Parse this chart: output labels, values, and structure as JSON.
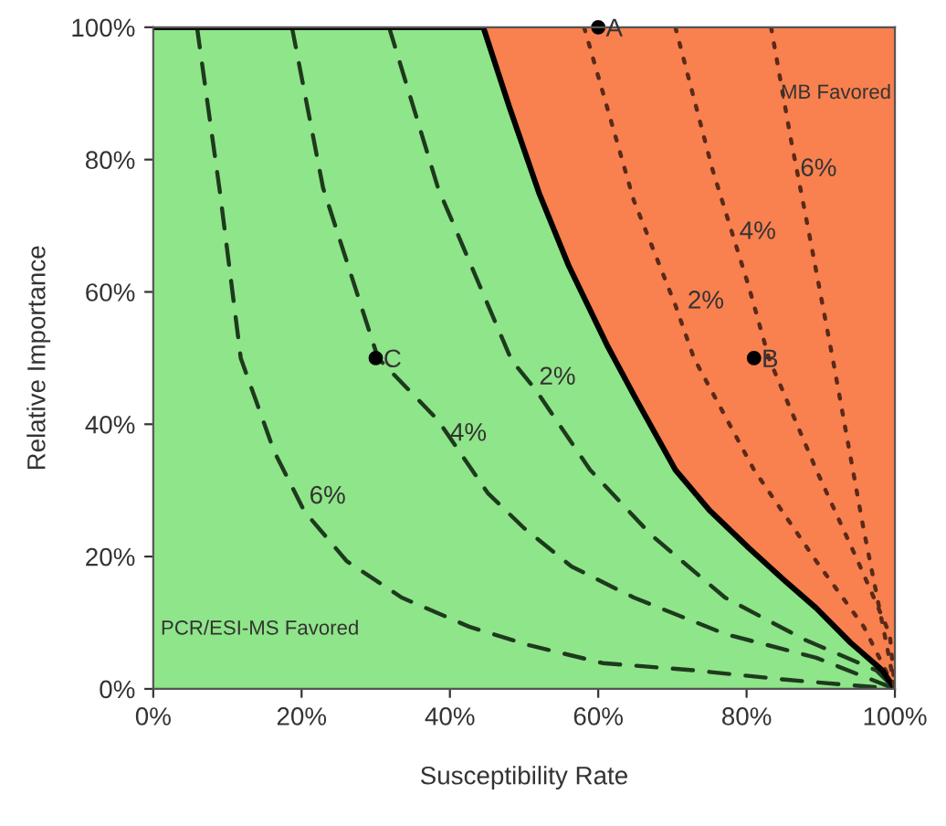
{
  "chart_data": {
    "type": "line",
    "xlabel": "Susceptibility Rate",
    "ylabel": "Relative Importance",
    "xlim": [
      0,
      100
    ],
    "ylim": [
      0,
      100
    ],
    "xticks": [
      {
        "value": 0,
        "label": "0%"
      },
      {
        "value": 20,
        "label": "20%"
      },
      {
        "value": 40,
        "label": "40%"
      },
      {
        "value": 60,
        "label": "60%"
      },
      {
        "value": 80,
        "label": "80%"
      },
      {
        "value": 100,
        "label": "100%"
      }
    ],
    "yticks": [
      {
        "value": 0,
        "label": "0%"
      },
      {
        "value": 20,
        "label": "20%"
      },
      {
        "value": 40,
        "label": "40%"
      },
      {
        "value": 60,
        "label": "60%"
      },
      {
        "value": 80,
        "label": "80%"
      },
      {
        "value": 100,
        "label": "100%"
      }
    ],
    "series": [
      {
        "type": "area",
        "color": "#8fe589",
        "line_style": "solid",
        "x": [
          0,
          44.5,
          48,
          52,
          56,
          61.3,
          65,
          70.4,
          75,
          80.3,
          85,
          89.4,
          94,
          98.3,
          100
        ],
        "values": [
          100,
          100,
          88,
          75,
          64,
          51.7,
          44,
          33.1,
          27,
          21.3,
          16.5,
          12.2,
          7,
          2.8,
          0
        ]
      },
      {
        "color": "#1e3a1e",
        "line_style": "dashed",
        "x": [
          5.9,
          9,
          11.8,
          16.3,
          20.4,
          26.1,
          33.5,
          42.6,
          50.7,
          60.6,
          72.9,
          85.2,
          100
        ],
        "values": [
          100,
          75,
          50,
          35.9,
          26.8,
          19.3,
          13.8,
          9.4,
          6.6,
          3.9,
          2.8,
          1.4,
          0
        ]
      },
      {
        "color": "#1e3a1e",
        "line_style": "dashed",
        "x": [
          18.7,
          22.9,
          30.3,
          38.4,
          45.1,
          50,
          56.4,
          64.8,
          77.1,
          89.4,
          100
        ],
        "values": [
          100,
          75.7,
          50,
          40.6,
          29.6,
          24.3,
          18.5,
          13.8,
          8.3,
          4.7,
          0
        ]
      },
      {
        "color": "#1e3a1e",
        "line_style": "dashed",
        "x": [
          31.8,
          38.4,
          48.3,
          51.5,
          58.9,
          67.2,
          77.1,
          87.7,
          97.5,
          100
        ],
        "values": [
          100,
          75.7,
          49.7,
          45.3,
          33.1,
          23.2,
          13.8,
          7.5,
          2.8,
          0
        ]
      },
      {
        "color": "#5a2a18",
        "line_style": "dotted",
        "x": [
          58.1,
          64.8,
          70.4,
          72.9,
          81,
          89.4,
          95.8,
          100
        ],
        "values": [
          100,
          73.8,
          58,
          50,
          33.1,
          19.3,
          9.4,
          0
        ]
      },
      {
        "color": "#5a2a18",
        "line_style": "dotted",
        "x": [
          70.4,
          75.4,
          80.3,
          83,
          89.4,
          95,
          99.3,
          100
        ],
        "values": [
          100,
          78.5,
          60.8,
          50,
          33.1,
          19.3,
          8.3,
          0
        ]
      },
      {
        "color": "#5a2a18",
        "line_style": "dotted",
        "x": [
          83.3,
          86,
          88.4,
          91.6,
          95.8,
          99,
          100
        ],
        "values": [
          100,
          82.9,
          69,
          50,
          24,
          6,
          0
        ]
      },
      {
        "type": "scatter",
        "color": "#000000",
        "marker": "circle",
        "x": [
          60,
          81,
          30
        ],
        "values": [
          100,
          50,
          50
        ]
      }
    ],
    "bands": [
      {
        "axis": "x",
        "from": 44.5,
        "to": 100,
        "color": "#f9804f"
      }
    ],
    "annotations": [
      {
        "text": "A",
        "x": 60,
        "y": 100
      },
      {
        "text": "B",
        "x": 81,
        "y": 50
      },
      {
        "text": "C",
        "x": 30,
        "y": 50
      },
      "6%",
      "4%",
      "2%",
      "2%",
      "4%",
      "6%",
      "MB Favored",
      "PCR/ESI-MS Favored"
    ]
  }
}
